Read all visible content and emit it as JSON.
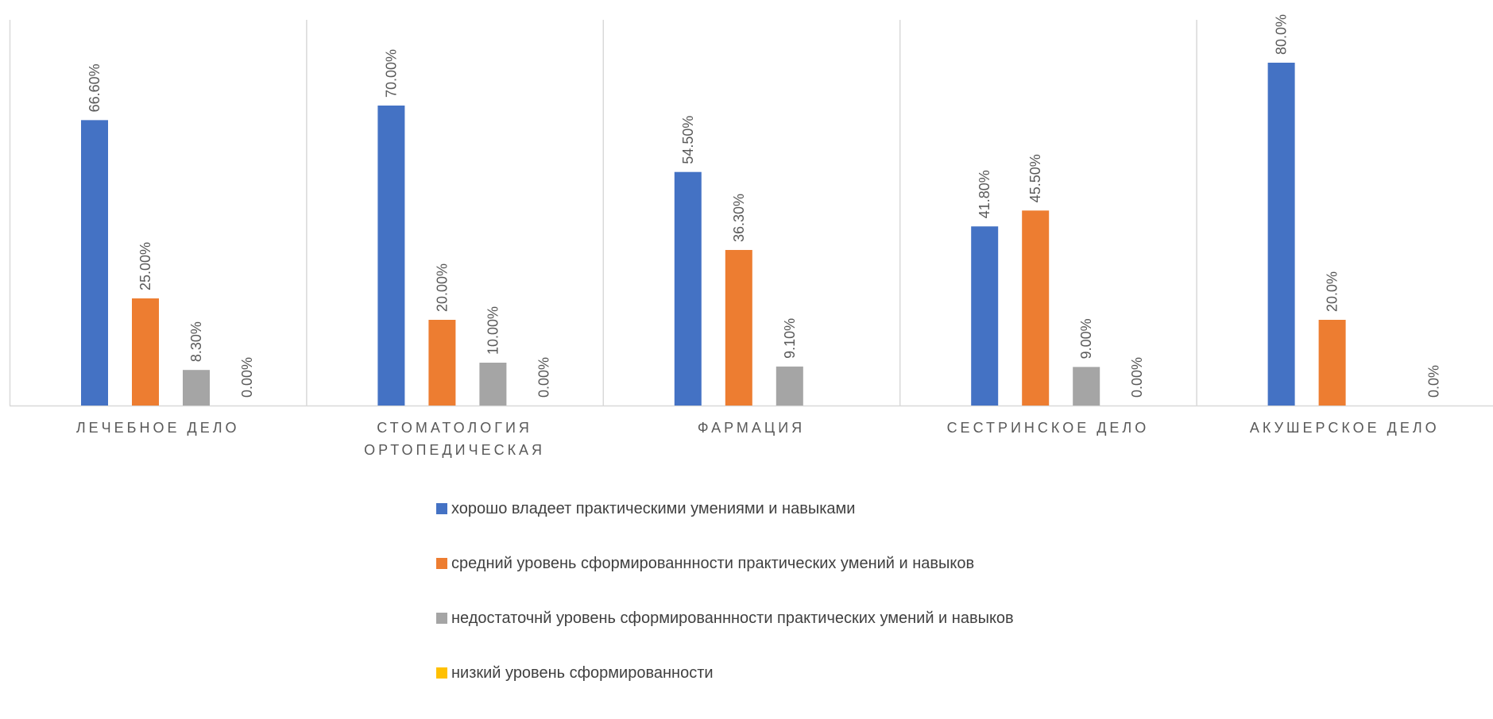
{
  "chart_data": {
    "type": "bar",
    "categories": [
      [
        "ЛЕЧЕБНОЕ ДЕЛО"
      ],
      [
        "СТОМАТОЛОГИЯ",
        "ОРТОПЕДИЧЕСКАЯ"
      ],
      [
        "ФАРМАЦИЯ"
      ],
      [
        "СЕСТРИНСКОЕ ДЕЛО"
      ],
      [
        "АКУШЕРСКОЕ ДЕЛО"
      ]
    ],
    "ylim": [
      0,
      90
    ],
    "grid": false,
    "legend_position": "bottom",
    "series": [
      {
        "name": "хорошо владеет практическими умениями и навыками",
        "color": "#4472C4",
        "values": [
          66.6,
          70.0,
          54.5,
          41.8,
          80.0
        ],
        "labels": [
          "66.60%",
          "70.00%",
          "54.50%",
          "41.80%",
          "80.0%"
        ]
      },
      {
        "name": "средний уровень сформированнности практических умений и навыков",
        "color": "#ED7D31",
        "values": [
          25.0,
          20.0,
          36.3,
          45.5,
          20.0
        ],
        "labels": [
          "25.00%",
          "20.00%",
          "36.30%",
          "45.50%",
          "20.0%"
        ]
      },
      {
        "name": "недостаточнй уровень сформированнности практических умений и навыков",
        "color": "#A5A5A5",
        "values": [
          8.3,
          10.0,
          9.1,
          9.0,
          null
        ],
        "labels": [
          "8.30%",
          "10.00%",
          "9.10%",
          "9.00%",
          null
        ]
      },
      {
        "name": "низкий уровень сформированности",
        "color": "#FFC000",
        "values": [
          0.0,
          0.0,
          null,
          0.0,
          0.0
        ],
        "labels": [
          "0.00%",
          "0.00%",
          null,
          "0.00%",
          "0.0%"
        ]
      }
    ]
  }
}
